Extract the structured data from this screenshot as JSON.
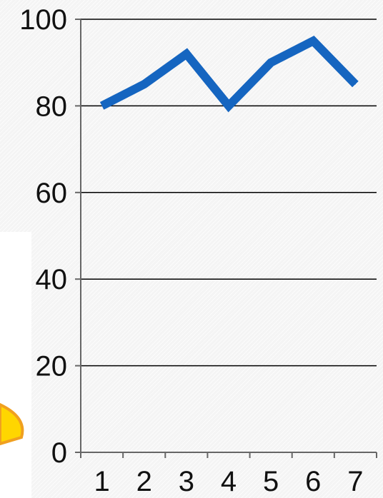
{
  "chart_data": {
    "type": "line",
    "title": "",
    "xlabel": "",
    "ylabel": "",
    "categories": [
      "1",
      "2",
      "3",
      "4",
      "5",
      "6",
      "7"
    ],
    "series": [
      {
        "values": [
          80,
          85,
          92,
          80,
          90,
          95,
          85
        ]
      }
    ],
    "ylim": [
      0,
      100
    ],
    "yticks": [
      "0",
      "20",
      "40",
      "60",
      "80",
      "100"
    ],
    "grid": true,
    "legend": "none",
    "colors": {
      "line": "#1565C0",
      "grid": "#000000",
      "axis": "#666666",
      "background": "#f4f4f4",
      "panel": "#ffffff",
      "decoration": "#FFD600",
      "decoration_edge": "#F0A020"
    }
  }
}
